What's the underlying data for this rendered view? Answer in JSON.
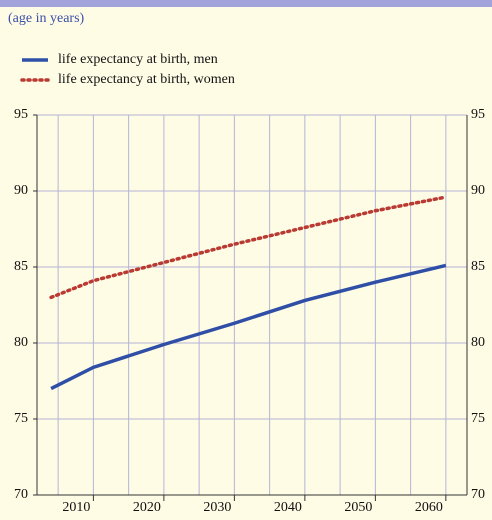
{
  "chart_data": {
    "type": "line",
    "subtitle": "(age in years)",
    "x": [
      2004,
      2010,
      2020,
      2030,
      2040,
      2050,
      2060
    ],
    "series": [
      {
        "name": "life expectancy at birth, men",
        "color": "#2f4ea6",
        "style": "solid",
        "values": [
          77.0,
          78.4,
          79.9,
          81.3,
          82.8,
          84.0,
          85.1
        ]
      },
      {
        "name": "life expectancy at birth, women",
        "color": "#b83a33",
        "style": "dotted",
        "values": [
          83.0,
          84.1,
          85.3,
          86.5,
          87.6,
          88.7,
          89.6
        ]
      }
    ],
    "xlim": [
      2002,
      2063
    ],
    "xticks": [
      2010,
      2020,
      2030,
      2040,
      2050,
      2060
    ],
    "minor_xticks": [
      2005,
      2015,
      2025,
      2035,
      2045,
      2055
    ],
    "ylim": [
      70,
      95
    ],
    "yticks": [
      70,
      75,
      80,
      85,
      90,
      95
    ],
    "grid": true
  }
}
